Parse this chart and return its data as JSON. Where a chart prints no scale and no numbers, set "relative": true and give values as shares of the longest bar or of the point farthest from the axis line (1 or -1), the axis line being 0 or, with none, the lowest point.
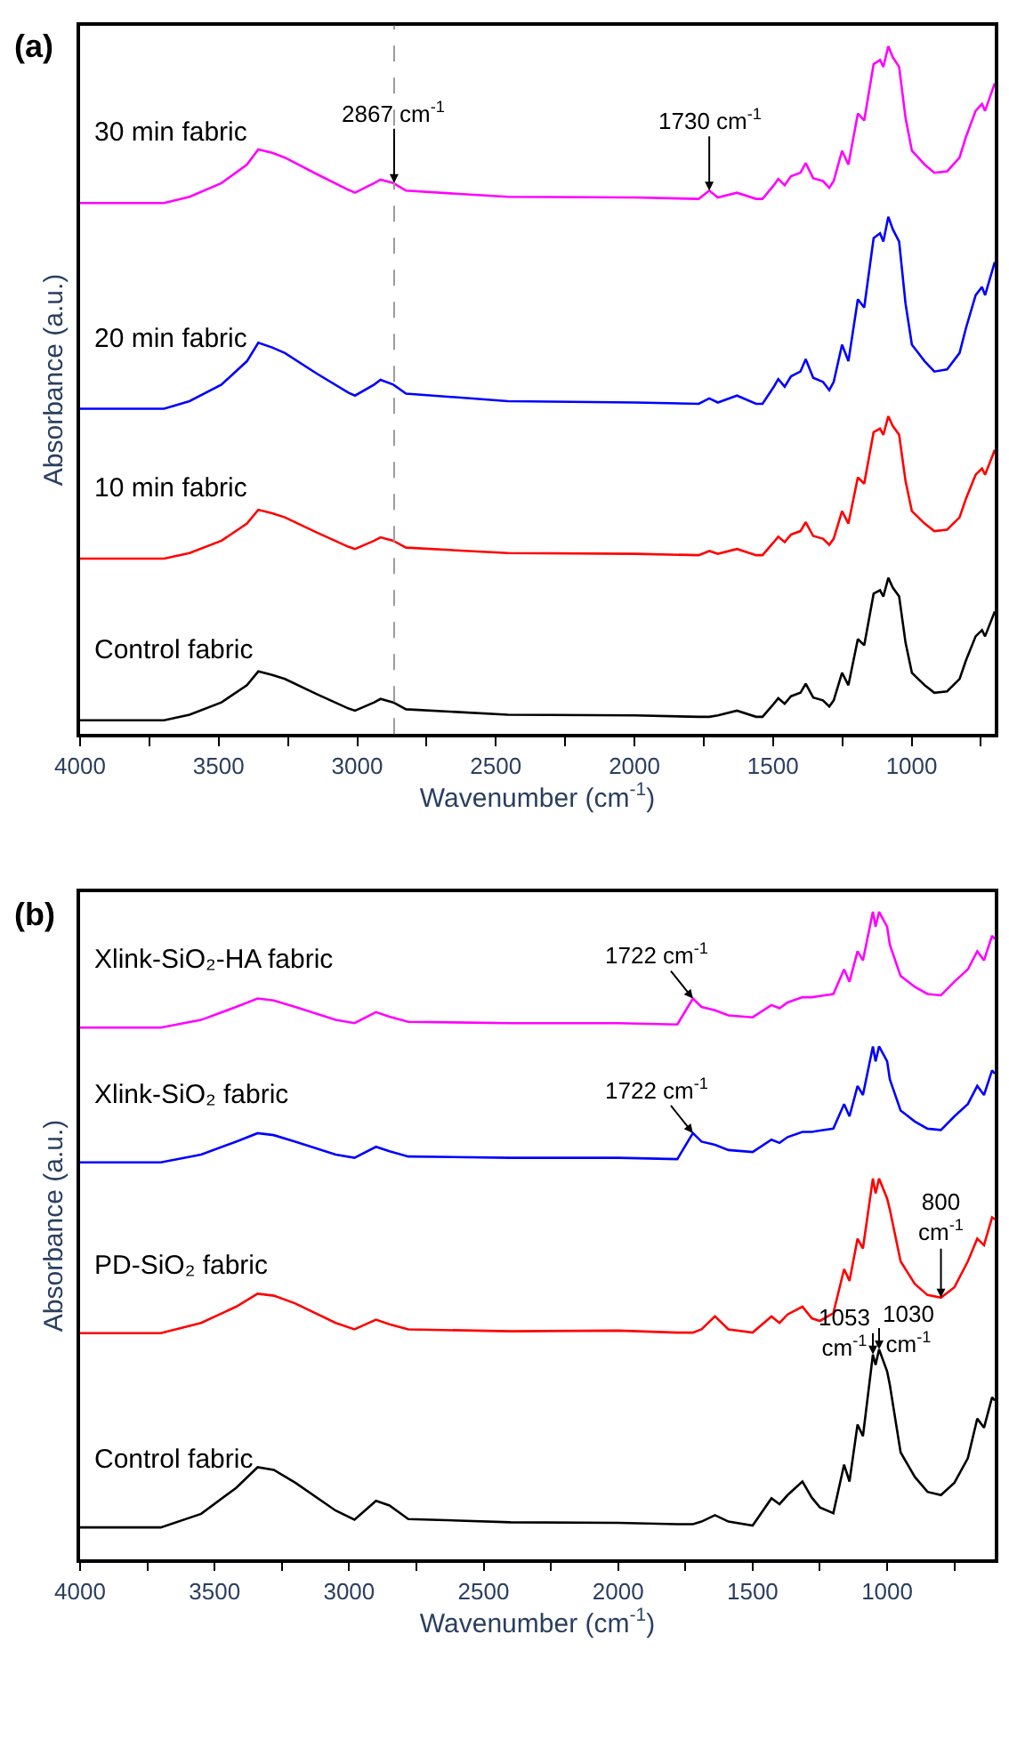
{
  "chart_data": [
    {
      "type": "line",
      "title": "(a)",
      "xlabel": "Wavenumber (cm$^{-1}$)",
      "ylabel": "Absorbance (a.u.)",
      "relative": true,
      "marker": "none",
      "line_style": "solid",
      "xlim": [
        4000,
        700
      ],
      "xticks": [
        4000,
        {
          "value": 3750,
          "label": null
        },
        3500,
        {
          "value": 3250,
          "label": null
        },
        3000,
        {
          "value": 2750,
          "label": null
        },
        2500,
        {
          "value": 2250,
          "label": null
        },
        2000,
        {
          "value": 1750,
          "label": null
        },
        1500,
        {
          "value": 1250,
          "label": null
        },
        1000,
        {
          "value": 750,
          "label": null
        }
      ],
      "x": [
        4000,
        3697,
        3605,
        3490,
        3398,
        3357,
        3307,
        3261,
        3146,
        3031,
        3008,
        2939,
        2916,
        2870,
        2824,
        2457,
        1998,
        1768,
        1730,
        1699,
        1630,
        1561,
        1538,
        1497,
        1481,
        1458,
        1435,
        1401,
        1382,
        1355,
        1320,
        1297,
        1281,
        1251,
        1228,
        1194,
        1171,
        1137,
        1114,
        1102,
        1084,
        1068,
        1045,
        1022,
        999,
        976,
        953,
        918,
        872,
        827,
        804,
        769,
        746,
        735,
        700
      ],
      "ref_lines": [
        {
          "axis": "x",
          "value": 2867,
          "color": "#999999",
          "line_style": "dashed"
        }
      ],
      "annotations": [
        {
          "text": "2867 cm$^{-1}$",
          "x": 2867,
          "y": 0.801
        },
        {
          "text": "1730 cm$^{-1}$",
          "x": 1730,
          "y": 0.79
        }
      ],
      "series": [
        {
          "name": "Control fabric",
          "color": "#000000",
          "values": [
            0.02,
            0.02,
            0.028,
            0.046,
            0.071,
            0.091,
            0.086,
            0.08,
            0.058,
            0.037,
            0.034,
            0.046,
            0.051,
            0.046,
            0.036,
            0.028,
            0.027,
            0.025,
            0.025,
            0.027,
            0.034,
            0.025,
            0.025,
            0.044,
            0.052,
            0.044,
            0.055,
            0.06,
            0.073,
            0.053,
            0.049,
            0.04,
            0.049,
            0.089,
            0.071,
            0.138,
            0.129,
            0.204,
            0.209,
            0.2,
            0.227,
            0.213,
            0.2,
            0.133,
            0.089,
            0.08,
            0.071,
            0.06,
            0.062,
            0.08,
            0.107,
            0.142,
            0.151,
            0.142,
            0.178
          ]
        },
        {
          "name": "10 min fabric",
          "color": "#ff0000",
          "values": [
            0.255,
            0.255,
            0.263,
            0.281,
            0.306,
            0.326,
            0.321,
            0.315,
            0.293,
            0.272,
            0.269,
            0.281,
            0.286,
            0.281,
            0.271,
            0.263,
            0.262,
            0.26,
            0.266,
            0.262,
            0.269,
            0.26,
            0.26,
            0.279,
            0.287,
            0.279,
            0.29,
            0.295,
            0.308,
            0.288,
            0.284,
            0.275,
            0.284,
            0.324,
            0.306,
            0.373,
            0.364,
            0.439,
            0.444,
            0.435,
            0.462,
            0.448,
            0.435,
            0.368,
            0.324,
            0.315,
            0.306,
            0.295,
            0.297,
            0.315,
            0.342,
            0.377,
            0.386,
            0.377,
            0.413
          ]
        },
        {
          "name": "20 min fabric",
          "color": "#0000ff",
          "values": [
            0.473,
            0.473,
            0.484,
            0.508,
            0.542,
            0.569,
            0.562,
            0.554,
            0.524,
            0.496,
            0.492,
            0.508,
            0.515,
            0.508,
            0.495,
            0.484,
            0.482,
            0.48,
            0.488,
            0.482,
            0.492,
            0.48,
            0.48,
            0.505,
            0.516,
            0.505,
            0.52,
            0.527,
            0.545,
            0.518,
            0.512,
            0.5,
            0.512,
            0.566,
            0.542,
            0.632,
            0.62,
            0.721,
            0.728,
            0.716,
            0.752,
            0.734,
            0.716,
            0.626,
            0.566,
            0.554,
            0.542,
            0.527,
            0.53,
            0.554,
            0.59,
            0.638,
            0.65,
            0.638,
            0.686
          ]
        },
        {
          "name": "30 min fabric",
          "color": "#ff00ff",
          "values": [
            0.772,
            0.772,
            0.781,
            0.801,
            0.828,
            0.85,
            0.845,
            0.838,
            0.814,
            0.791,
            0.787,
            0.801,
            0.806,
            0.801,
            0.79,
            0.781,
            0.78,
            0.778,
            0.79,
            0.78,
            0.787,
            0.778,
            0.778,
            0.798,
            0.807,
            0.798,
            0.811,
            0.816,
            0.83,
            0.808,
            0.804,
            0.794,
            0.804,
            0.848,
            0.828,
            0.902,
            0.892,
            0.974,
            0.98,
            0.97,
            1,
            0.984,
            0.97,
            0.896,
            0.848,
            0.838,
            0.828,
            0.816,
            0.818,
            0.838,
            0.868,
            0.906,
            0.916,
            0.906,
            0.946
          ]
        }
      ]
    },
    {
      "type": "line",
      "title": "(b)",
      "xlabel": "Wavenumber (cm$^{-1}$)",
      "ylabel": "Absorbance (a.u.)",
      "relative": true,
      "marker": "none",
      "line_style": "solid",
      "xlim": [
        4000,
        600
      ],
      "xticks": [
        4000,
        {
          "value": 3750,
          "label": null
        },
        3500,
        {
          "value": 3250,
          "label": null
        },
        3000,
        {
          "value": 2750,
          "label": null
        },
        2500,
        {
          "value": 2250,
          "label": null
        },
        2000,
        {
          "value": 1750,
          "label": null
        },
        1500,
        {
          "value": 1250,
          "label": null
        },
        1000,
        {
          "value": 750,
          "label": null
        }
      ],
      "x": [
        4000,
        3700,
        3550,
        3420,
        3340,
        3280,
        3200,
        3050,
        2980,
        2900,
        2850,
        2780,
        2400,
        2000,
        1780,
        1722,
        1690,
        1640,
        1590,
        1500,
        1430,
        1400,
        1370,
        1315,
        1280,
        1250,
        1200,
        1160,
        1140,
        1110,
        1090,
        1053,
        1043,
        1030,
        1000,
        990,
        950,
        897,
        850,
        800,
        750,
        700,
        665,
        640,
        610,
        600
      ],
      "annotations": [
        {
          "text": "1722 cm$^{-1}$",
          "x": 1722,
          "y": 0.866
        },
        {
          "text": "1722 cm$^{-1}$",
          "x": 1722,
          "y": 0.658
        },
        {
          "text": "1053\ncm$^{-1}$",
          "x": 1053,
          "y": 0.316
        },
        {
          "text": "1030\ncm$^{-1}$",
          "x": 1030,
          "y": 0.324
        },
        {
          "text": "800\ncm$^{-1}$",
          "x": 800,
          "y": 0.404
        }
      ],
      "series": [
        {
          "name": "Control fabric",
          "color": "#000000",
          "values": [
            0.049,
            0.049,
            0.07,
            0.11,
            0.142,
            0.138,
            0.118,
            0.075,
            0.061,
            0.09,
            0.083,
            0.062,
            0.057,
            0.056,
            0.054,
            0.054,
            0.058,
            0.068,
            0.058,
            0.052,
            0.094,
            0.085,
            0.099,
            0.12,
            0.095,
            0.08,
            0.071,
            0.146,
            0.12,
            0.208,
            0.19,
            0.316,
            0.3,
            0.324,
            0.29,
            0.269,
            0.165,
            0.127,
            0.104,
            0.099,
            0.118,
            0.156,
            0.217,
            0.203,
            0.25,
            0.245
          ]
        },
        {
          "name": "PD-SiO₂ fabric",
          "color": "#ff0000",
          "values": [
            0.349,
            0.349,
            0.365,
            0.39,
            0.41,
            0.407,
            0.395,
            0.365,
            0.355,
            0.37,
            0.363,
            0.355,
            0.352,
            0.353,
            0.35,
            0.35,
            0.355,
            0.375,
            0.355,
            0.35,
            0.375,
            0.365,
            0.378,
            0.39,
            0.372,
            0.368,
            0.38,
            0.448,
            0.43,
            0.495,
            0.48,
            0.588,
            0.565,
            0.588,
            0.557,
            0.54,
            0.46,
            0.425,
            0.408,
            0.404,
            0.42,
            0.46,
            0.495,
            0.485,
            0.528,
            0.525
          ]
        },
        {
          "name": "Xlink-SiO₂ fabric",
          "color": "#0000ff",
          "values": [
            0.613,
            0.613,
            0.625,
            0.645,
            0.658,
            0.655,
            0.645,
            0.625,
            0.62,
            0.637,
            0.63,
            0.622,
            0.62,
            0.62,
            0.618,
            0.658,
            0.645,
            0.64,
            0.632,
            0.629,
            0.648,
            0.643,
            0.652,
            0.66,
            0.66,
            0.662,
            0.665,
            0.703,
            0.684,
            0.731,
            0.717,
            0.792,
            0.769,
            0.792,
            0.769,
            0.741,
            0.693,
            0.676,
            0.665,
            0.663,
            0.684,
            0.703,
            0.731,
            0.717,
            0.755,
            0.75
          ]
        },
        {
          "name": "Xlink-SiO₂-HA fabric",
          "color": "#ff00ff",
          "values": [
            0.821,
            0.821,
            0.833,
            0.853,
            0.866,
            0.863,
            0.853,
            0.833,
            0.828,
            0.845,
            0.838,
            0.83,
            0.828,
            0.828,
            0.826,
            0.866,
            0.853,
            0.848,
            0.84,
            0.837,
            0.856,
            0.851,
            0.86,
            0.868,
            0.868,
            0.87,
            0.873,
            0.911,
            0.892,
            0.939,
            0.925,
            1,
            0.977,
            1,
            0.977,
            0.949,
            0.901,
            0.884,
            0.873,
            0.871,
            0.892,
            0.911,
            0.939,
            0.925,
            0.963,
            0.958
          ]
        }
      ]
    }
  ]
}
